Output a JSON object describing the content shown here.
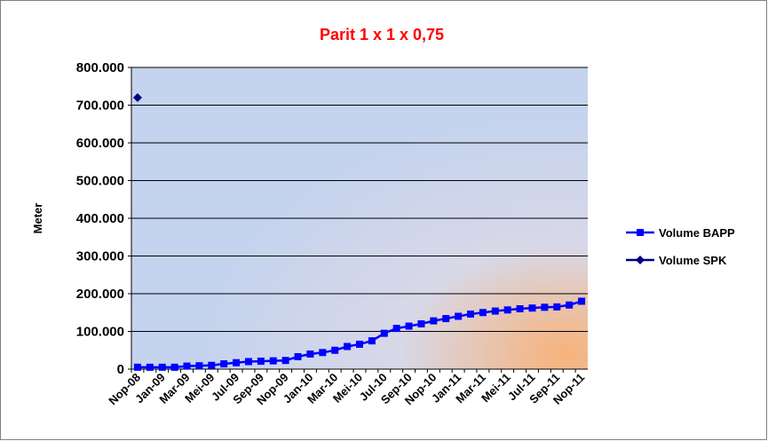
{
  "chart_data": {
    "type": "line",
    "title": "Parit 1 x 1 x 0,75",
    "y_label": "Meter",
    "categories": [
      "Nop-08",
      null,
      "Jan-09",
      null,
      "Mar-09",
      null,
      "Mei-09",
      null,
      "Jul-09",
      null,
      "Sep-09",
      null,
      "Nop-09",
      null,
      "Jan-10",
      null,
      "Mar-10",
      null,
      "Mei-10",
      null,
      "Jul-10",
      null,
      "Sep-10",
      null,
      "Nop-10",
      null,
      "Jan-11",
      null,
      "Mar-11",
      null,
      "Mei-11",
      null,
      "Jul-11",
      null,
      "Sep-11",
      null,
      "Nop-11"
    ],
    "series": [
      {
        "name": "Volume BAPP",
        "color": "#0000ff",
        "marker": "square",
        "values": [
          5000,
          5000,
          5000,
          5000,
          8000,
          9000,
          10000,
          14000,
          17000,
          20000,
          21000,
          22000,
          23000,
          33000,
          40000,
          44000,
          50000,
          60000,
          66000,
          75000,
          95000,
          108000,
          114000,
          120000,
          128000,
          134000,
          140000,
          146000,
          150000,
          154000,
          157000,
          160000,
          162000,
          164000,
          165000,
          170000,
          180000
        ]
      },
      {
        "name": "Volume SPK",
        "color": "#000080",
        "marker": "diamond",
        "values": [
          720000,
          null,
          null,
          null,
          null,
          null,
          null,
          null,
          null,
          null,
          null,
          null,
          null,
          null,
          null,
          null,
          null,
          null,
          null,
          null,
          null,
          null,
          null,
          null,
          null,
          null,
          null,
          null,
          null,
          null,
          null,
          null,
          null,
          null,
          null,
          null,
          null
        ]
      }
    ],
    "ylim": [
      0,
      800000
    ],
    "yticks": [
      0,
      {
        "value": 100000,
        "label": "100.000"
      },
      {
        "value": 200000,
        "label": "200.000"
      },
      {
        "value": 300000,
        "label": "300.000"
      },
      {
        "value": 400000,
        "label": "400.000"
      },
      {
        "value": 500000,
        "label": "500.000"
      },
      {
        "value": 600000,
        "label": "600.000"
      },
      {
        "value": 700000,
        "label": "700.000"
      },
      {
        "value": 800000,
        "label": "800.000"
      }
    ],
    "grid": true,
    "legend": "right"
  }
}
